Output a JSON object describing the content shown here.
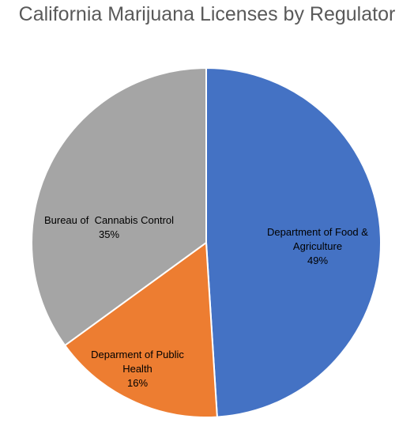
{
  "chart_data": {
    "type": "pie",
    "title": "California Marijuana Licenses by Regulator",
    "slices": [
      {
        "name": "Department of Food & Agriculture",
        "label_lines": [
          "Department of Food &",
          "Agriculture"
        ],
        "value": 49,
        "value_label": "49%",
        "color": "#4472C4"
      },
      {
        "name": "Deparment of Public Health",
        "label_lines": [
          "Deparment of Public",
          "Health"
        ],
        "value": 16,
        "value_label": "16%",
        "color": "#ED7D31"
      },
      {
        "name": "Bureau of  Cannabis Control",
        "label_lines": [
          "Bureau of  Cannabis Control"
        ],
        "value": 35,
        "value_label": "35%",
        "color": "#A5A5A5"
      }
    ],
    "start_angle": "12 o'clock",
    "direction": "clockwise",
    "legend": "none",
    "data_labels": "inside"
  }
}
